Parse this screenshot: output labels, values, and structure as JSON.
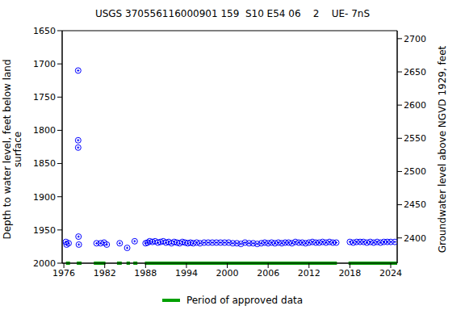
{
  "chart_data": {
    "type": "scatter",
    "title": "USGS 370556116000901 159  S10 E54 06    2    UE- 7nS",
    "ylabel": [
      "Depth to water level, feet below land",
      "surface"
    ],
    "y2label": "Groundwater level above NGVD 1929, feet",
    "xlim": [
      1975.75,
      2024.95
    ],
    "xticks": [
      1976,
      1982,
      1988,
      1994,
      2000,
      2006,
      2012,
      2018,
      2024
    ],
    "ylim": [
      2000,
      1650
    ],
    "yticks": [
      1650,
      1700,
      1750,
      1800,
      1850,
      1900,
      1950,
      2000
    ],
    "y2lim": [
      2362,
      2712
    ],
    "y2ticks": [
      2400,
      2450,
      2500,
      2550,
      2600,
      2650,
      2700
    ],
    "series": [
      {
        "color": "#0000ff",
        "marker": "circle-plus",
        "x": [
          1976.3,
          1976.4,
          1976.7,
          1978.1,
          1978.1,
          1978.1,
          1978.15,
          1978.2,
          1980.8,
          1981.4,
          1981.9,
          1982.3,
          1984.2,
          1985.3,
          1986.4,
          1988.0,
          1988.3,
          1988.6,
          1989.0,
          1989.4,
          1989.8,
          1990.2,
          1990.6,
          1991.0,
          1991.4,
          1991.8,
          1992.2,
          1992.6,
          1993.0,
          1993.4,
          1993.8,
          1994.2,
          1994.6,
          1995.0,
          1995.5,
          1996.0,
          1996.6,
          1997.2,
          1997.8,
          1998.4,
          1999.0,
          1999.6,
          2000.2,
          2000.8,
          2001.4,
          2002.0,
          2002.6,
          2003.2,
          2003.8,
          2004.4,
          2005.0,
          2005.5,
          2006.0,
          2006.5,
          2007.0,
          2007.5,
          2008.0,
          2008.5,
          2009.0,
          2009.5,
          2010.0,
          2010.5,
          2011.0,
          2011.5,
          2012.0,
          2012.5,
          2013.0,
          2013.5,
          2014.0,
          2014.5,
          2015.0,
          2015.5,
          2016.0,
          2018.0,
          2018.5,
          2019.0,
          2019.5,
          2020.0,
          2020.5,
          2021.0,
          2021.5,
          2022.0,
          2022.5,
          2023.0,
          2023.5,
          2024.0,
          2024.6
        ],
        "values": [
          1968,
          1972,
          1970,
          1710,
          1815,
          1826,
          1960,
          1972,
          1970,
          1970,
          1969,
          1972,
          1970,
          1977,
          1967,
          1970,
          1969,
          1967,
          1968,
          1967,
          1969,
          1968,
          1967,
          1969,
          1968,
          1970,
          1968,
          1969,
          1970,
          1968,
          1969,
          1970,
          1969,
          1970,
          1969,
          1970,
          1969,
          1969,
          1969,
          1969,
          1969,
          1969,
          1969,
          1970,
          1970,
          1971,
          1969,
          1970,
          1970,
          1971,
          1970,
          1969,
          1970,
          1969,
          1970,
          1969,
          1970,
          1969,
          1969,
          1970,
          1968,
          1969,
          1969,
          1970,
          1969,
          1968,
          1969,
          1969,
          1968,
          1969,
          1968,
          1969,
          1969,
          1968,
          1969,
          1968,
          1968,
          1968,
          1969,
          1968,
          1969,
          1968,
          1969,
          1968,
          1968,
          1968,
          1968
        ]
      },
      {
        "name": "Period of approved data",
        "type": "period",
        "color": "#00a000",
        "periods": [
          [
            1976.3,
            1976.9
          ],
          [
            1977.9,
            1978.6
          ],
          [
            1980.4,
            1982.1
          ],
          [
            1983.8,
            1984.5
          ],
          [
            1985.2,
            1985.7
          ],
          [
            1986.2,
            1986.8
          ],
          [
            1987.9,
            2016.1
          ],
          [
            2017.8,
            2024.95
          ]
        ]
      }
    ]
  }
}
